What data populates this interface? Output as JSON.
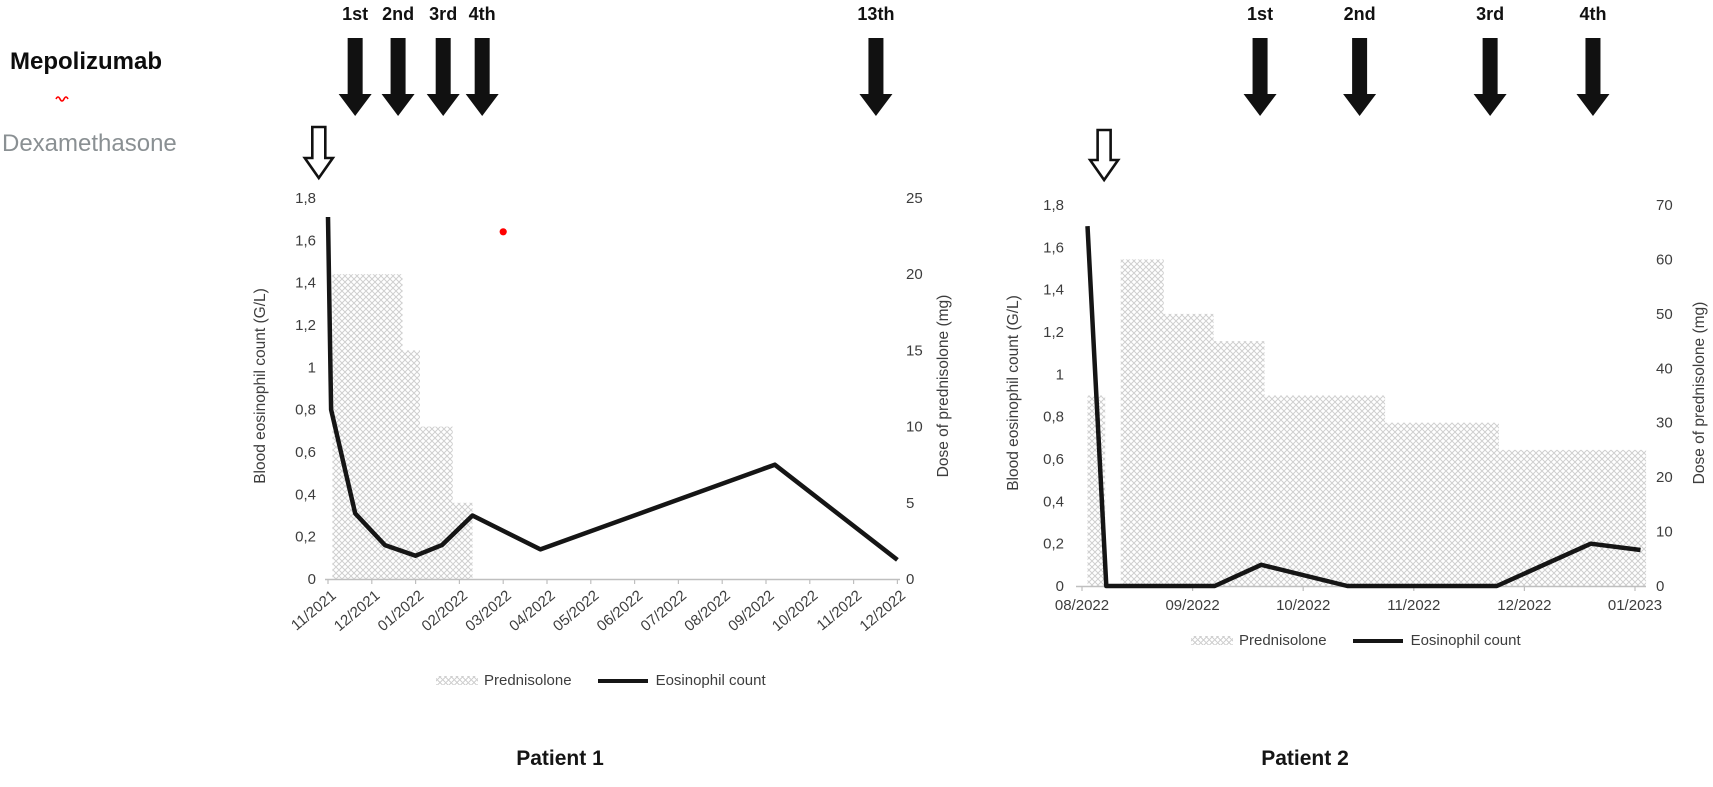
{
  "labels": {
    "mepolizumab": "Mepolizumab",
    "dexamethasone": "Dexamethasone"
  },
  "colors": {
    "eosinophil_line": "#151515",
    "prednisolone_pattern": "#cfcfcf",
    "dexamethasone_label_gray": "#8a9093",
    "red_marker": "#ff0000",
    "axis_text": "#3d3d3d"
  },
  "chart_data": [
    {
      "type": "area",
      "subtype": "stepped-area + line combo",
      "title": "Patient 1",
      "categories": [
        "11/2021",
        "12/2021",
        "01/2022",
        "02/2022",
        "03/2022",
        "04/2022",
        "05/2022",
        "06/2022",
        "07/2022",
        "08/2022",
        "09/2022",
        "10/2022",
        "11/2022",
        "12/2022"
      ],
      "left_axis": {
        "label": "Blood eosinophil count (G/L)",
        "min": 0,
        "max": 1.8,
        "step": 0.2,
        "decimal_separator": "comma"
      },
      "right_axis": {
        "label": "Dose of prednisolone (mg)",
        "min": 0,
        "max": 25,
        "step": 5
      },
      "series": [
        {
          "name": "Prednisolone",
          "kind": "area-steps",
          "axis": "right",
          "unit": "mg",
          "steps": [
            {
              "from_month": 0.1,
              "to_month": 1.7,
              "mg": 20
            },
            {
              "from_month": 1.7,
              "to_month": 2.1,
              "mg": 15
            },
            {
              "from_month": 2.1,
              "to_month": 2.85,
              "mg": 10
            },
            {
              "from_month": 2.85,
              "to_month": 3.3,
              "mg": 5
            }
          ]
        },
        {
          "name": "Eosinophil count",
          "kind": "line",
          "axis": "left",
          "unit": "G/L",
          "points": [
            [
              0,
              1.71
            ],
            [
              0.07,
              0.8
            ],
            [
              0.62,
              0.31
            ],
            [
              1.3,
              0.16
            ],
            [
              2.0,
              0.11
            ],
            [
              2.6,
              0.16
            ],
            [
              3.3,
              0.3
            ],
            [
              4.85,
              0.14
            ],
            [
              10.2,
              0.54
            ],
            [
              13,
              0.09
            ]
          ]
        }
      ],
      "injections": {
        "mepolizumab": [
          {
            "label": "1st",
            "month": 0.62
          },
          {
            "label": "2nd",
            "month": 1.6
          },
          {
            "label": "3rd",
            "month": 2.63
          },
          {
            "label": "4th",
            "month": 3.52
          },
          {
            "label": "13th",
            "month": 12.51
          }
        ],
        "dexamethasone": [
          {
            "month": -0.21
          }
        ]
      },
      "legend": {
        "prednisolone": "Prednisolone",
        "eosinophil": "Eosinophil count"
      },
      "annotations": {
        "red_dot": {
          "month": 4.0,
          "value": 1.64
        }
      }
    },
    {
      "type": "area",
      "subtype": "stepped-area + line combo",
      "title": "Patient 2",
      "categories": [
        "08/2022",
        "09/2022",
        "10/2022",
        "11/2022",
        "12/2022",
        "01/2023"
      ],
      "left_axis": {
        "label": "Blood eosinophil count (G/L)",
        "min": 0,
        "max": 1.8,
        "step": 0.2,
        "decimal_separator": "comma"
      },
      "right_axis": {
        "label": "Dose of prednisolone (mg)",
        "min": 0,
        "max": 70,
        "step": 10
      },
      "series": [
        {
          "name": "Prednisolone",
          "kind": "area-steps",
          "axis": "right",
          "unit": "mg",
          "steps": [
            {
              "from_month": 0.05,
              "to_month": 0.21,
              "mg": 35
            },
            {
              "from_month": 0.35,
              "to_month": 0.74,
              "mg": 60
            },
            {
              "from_month": 0.74,
              "to_month": 1.19,
              "mg": 50
            },
            {
              "from_month": 1.19,
              "to_month": 1.65,
              "mg": 45
            },
            {
              "from_month": 1.65,
              "to_month": 2.74,
              "mg": 35
            },
            {
              "from_month": 2.74,
              "to_month": 3.77,
              "mg": 30
            },
            {
              "from_month": 3.77,
              "to_month": 5.1,
              "mg": 25
            }
          ]
        },
        {
          "name": "Eosinophil count",
          "kind": "line",
          "axis": "left",
          "unit": "G/L",
          "points": [
            [
              0.05,
              1.7
            ],
            [
              0.22,
              0
            ],
            [
              1.2,
              0
            ],
            [
              1.62,
              0.1
            ],
            [
              2.4,
              0
            ],
            [
              3.75,
              0
            ],
            [
              4.6,
              0.2
            ],
            [
              5.05,
              0.17
            ]
          ]
        }
      ],
      "injections": {
        "mepolizumab": [
          {
            "label": "1st",
            "month": 1.61
          },
          {
            "label": "2nd",
            "month": 2.51
          },
          {
            "label": "3rd",
            "month": 3.69
          },
          {
            "label": "4th",
            "month": 4.62
          }
        ],
        "dexamethasone": [
          {
            "month": 0.2
          }
        ]
      },
      "legend": {
        "prednisolone": "Prednisolone",
        "eosinophil": "Eosinophil count"
      }
    }
  ]
}
